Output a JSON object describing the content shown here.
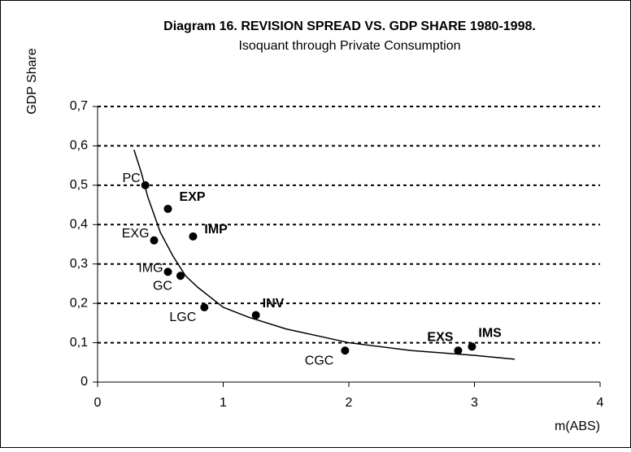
{
  "chart_data": {
    "type": "scatter",
    "title": "Diagram 16.  REVISION SPREAD VS. GDP SHARE 1980-1998.",
    "subtitle": "Isoquant through Private Consumption",
    "y_label": "GDP Share",
    "x_label": "m(ABS)",
    "points": {
      "labels": [
        "PC",
        "EXP",
        "IMP",
        "EXG",
        "IMG",
        "GC",
        "LGC",
        "INV",
        "CGC",
        "EXS",
        "IMS"
      ],
      "x": [
        0.38,
        0.56,
        0.76,
        0.45,
        0.56,
        0.66,
        0.85,
        1.26,
        1.97,
        2.87,
        2.98
      ],
      "y": [
        0.5,
        0.44,
        0.37,
        0.36,
        0.28,
        0.27,
        0.19,
        0.17,
        0.08,
        0.08,
        0.09
      ],
      "bold": [
        false,
        true,
        true,
        false,
        false,
        false,
        false,
        true,
        false,
        true,
        true
      ],
      "color": "#000000"
    },
    "curve": {
      "x": [
        0.29,
        0.35,
        0.4,
        0.5,
        0.6,
        0.7,
        0.8,
        1,
        1.2,
        1.5,
        2,
        2.5,
        3,
        3.32
      ],
      "y": [
        0.59,
        0.53,
        0.47,
        0.38,
        0.32,
        0.27,
        0.24,
        0.19,
        0.165,
        0.135,
        0.1,
        0.08,
        0.068,
        0.058
      ],
      "color": "#000000"
    },
    "xlim": [
      0,
      4
    ],
    "ylim": [
      0,
      0.7
    ],
    "xticks": [
      0,
      1,
      2,
      3,
      4
    ],
    "yticks": [
      0,
      {
        "value": 0.1,
        "label": "0,1"
      },
      {
        "value": 0.2,
        "label": "0,2"
      },
      {
        "value": 0.3,
        "label": "0,3"
      },
      {
        "value": 0.4,
        "label": "0,4"
      },
      {
        "value": 0.5,
        "label": "0,5"
      },
      {
        "value": 0.6,
        "label": "0,6"
      },
      {
        "value": 0.7,
        "label": "0,7"
      }
    ],
    "grid": true
  }
}
